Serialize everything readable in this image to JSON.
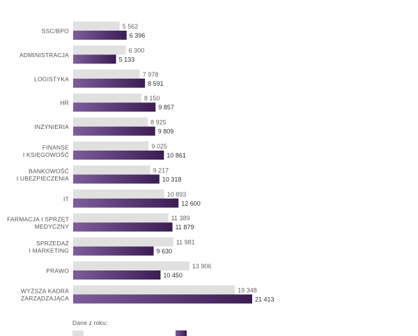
{
  "chart_data": {
    "type": "bar",
    "orientation": "horizontal",
    "title": "",
    "categories": [
      [
        "SSC/BPO"
      ],
      [
        "ADMINISTRACJA"
      ],
      [
        "LOGISTYKA"
      ],
      [
        "HR"
      ],
      [
        "INŻYNIERIA"
      ],
      [
        "FINANSE",
        "I KSIĘGOWOŚĆ"
      ],
      [
        "BANKOWOŚĆ",
        "I UBEZPIECZENIA"
      ],
      [
        "IT"
      ],
      [
        "FARMACJA I SPRZĘT",
        "MEDYCZNY"
      ],
      [
        "SPRZEDAŻ",
        "I MARKETING"
      ],
      [
        "PRAWO"
      ],
      [
        "WYŻSZA KADRA",
        "ZARZĄDZAJĄCA"
      ]
    ],
    "series": [
      {
        "color": "#dfe1e1",
        "values": [
          5562,
          6300,
          7978,
          8150,
          8925,
          9025,
          9217,
          10893,
          11389,
          11981,
          13906,
          19348
        ],
        "labels": [
          "5 562",
          "6 300",
          "7 978",
          "8 150",
          "8 925",
          "9 025",
          "9 217",
          "10 893",
          "11 389",
          "11 981",
          "13 906",
          "19 348"
        ]
      },
      {
        "color": "#4b2a66",
        "values": [
          6396,
          5133,
          8591,
          9857,
          9809,
          10861,
          10318,
          12600,
          11879,
          9630,
          10450,
          21413
        ],
        "labels": [
          "6 396",
          "5 133",
          "8 591",
          "9 857",
          "9 809",
          "10 861",
          "10 318",
          "12 600",
          "11 879",
          "9 630",
          "10 450",
          "21 413"
        ]
      }
    ],
    "xlim": [
      0,
      21413
    ],
    "grid": false,
    "legend": {
      "title": "Dane z roku:",
      "placement": "bottom-left"
    }
  }
}
